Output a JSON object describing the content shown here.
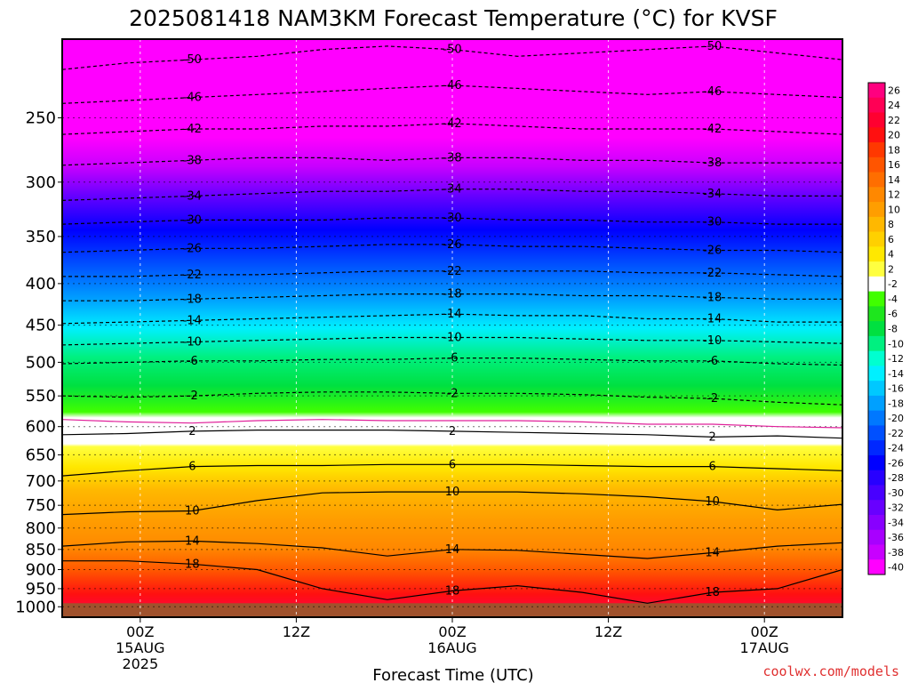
{
  "chart_data": {
    "type": "heatmap",
    "title": "2025081418 NAM3KM Forecast Temperature (°C) for KVSF",
    "xlabel": "Forecast Time (UTC)",
    "ylabel": "",
    "y_axis": {
      "scale": "pressure (log-like, decreasing upward)",
      "ticks": [
        250,
        300,
        350,
        400,
        450,
        500,
        550,
        600,
        650,
        700,
        750,
        800,
        850,
        900,
        950,
        1000
      ],
      "range": [
        1000,
        200
      ],
      "surface_pressure": 990
    },
    "x_axis": {
      "range_hours_from_init": [
        0,
        60
      ],
      "ticks": [
        {
          "line1": "00Z",
          "line2": "15AUG",
          "line3": "2025",
          "hour": 6
        },
        {
          "line1": "12Z",
          "line2": "",
          "line3": "",
          "hour": 18
        },
        {
          "line1": "00Z",
          "line2": "16AUG",
          "line3": "",
          "hour": 30
        },
        {
          "line1": "12Z",
          "line2": "",
          "line3": "",
          "hour": 42
        },
        {
          "line1": "00Z",
          "line2": "17AUG",
          "line3": "",
          "hour": 54
        }
      ]
    },
    "grid": true,
    "colorbar": {
      "position": "right",
      "labels": [
        "26",
        "24",
        "22",
        "20",
        "18",
        "16",
        "14",
        "12",
        "10",
        "8",
        "6",
        "4",
        "2",
        "-2",
        "-4",
        "-6",
        "-8",
        "-10",
        "-12",
        "-14",
        "-16",
        "-18",
        "-20",
        "-22",
        "-24",
        "-26",
        "-28",
        "-30",
        "-32",
        "-34",
        "-36",
        "-38",
        "-40"
      ],
      "colors": [
        "#ff007f",
        "#ff0055",
        "#ff0030",
        "#ff1010",
        "#ff3800",
        "#ff5500",
        "#ff6e00",
        "#ff8800",
        "#ff9e00",
        "#ffb800",
        "#ffd000",
        "#ffe800",
        "#ffff40",
        "#ffffff",
        "#40ff00",
        "#1ee61e",
        "#00e040",
        "#00f080",
        "#00ffd0",
        "#00f0ff",
        "#00c8ff",
        "#00a0ff",
        "#0078ff",
        "#0050ff",
        "#0028ff",
        "#0000ff",
        "#2800ff",
        "#4800ff",
        "#6800ff",
        "#8800ff",
        "#a800ff",
        "#c800ff",
        "#ff00ff"
      ]
    },
    "isotherms": [
      {
        "value": -50,
        "label": "-50",
        "pressure": [
          218,
          214,
          212,
          210,
          206,
          204,
          206,
          210,
          208,
          206,
          204,
          208,
          212
        ]
      },
      {
        "value": -46,
        "label": "-46",
        "pressure": [
          240,
          238,
          236,
          234,
          232,
          230,
          228,
          230,
          232,
          234,
          232,
          234,
          236
        ]
      },
      {
        "value": -42,
        "label": "-42",
        "pressure": [
          262,
          260,
          258,
          258,
          256,
          256,
          254,
          256,
          258,
          258,
          258,
          260,
          262
        ]
      },
      {
        "value": -38,
        "label": "-38",
        "pressure": [
          286,
          284,
          282,
          280,
          280,
          282,
          280,
          280,
          282,
          282,
          284,
          284,
          284
        ]
      },
      {
        "value": -34,
        "label": "-34",
        "pressure": [
          316,
          314,
          312,
          310,
          308,
          308,
          306,
          306,
          308,
          308,
          310,
          312,
          312
        ]
      },
      {
        "value": -30,
        "label": "-30",
        "pressure": [
          338,
          336,
          334,
          334,
          334,
          332,
          332,
          334,
          334,
          336,
          336,
          338,
          338
        ]
      },
      {
        "value": -26,
        "label": "-26",
        "pressure": [
          366,
          364,
          362,
          362,
          360,
          358,
          358,
          360,
          360,
          362,
          364,
          364,
          366
        ]
      },
      {
        "value": -22,
        "label": "-22",
        "pressure": [
          392,
          392,
          390,
          390,
          388,
          386,
          386,
          386,
          386,
          388,
          388,
          390,
          392
        ]
      },
      {
        "value": -18,
        "label": "-18",
        "pressure": [
          420,
          420,
          418,
          416,
          414,
          412,
          412,
          412,
          414,
          414,
          416,
          418,
          418
        ]
      },
      {
        "value": -14,
        "label": "-14",
        "pressure": [
          448,
          446,
          444,
          442,
          440,
          438,
          436,
          438,
          438,
          442,
          442,
          446,
          446
        ]
      },
      {
        "value": -10,
        "label": "-10",
        "pressure": [
          476,
          474,
          472,
          470,
          468,
          466,
          466,
          466,
          468,
          470,
          470,
          472,
          474
        ]
      },
      {
        "value": -6,
        "label": "-6",
        "pressure": [
          502,
          500,
          498,
          498,
          496,
          496,
          494,
          494,
          496,
          498,
          498,
          502,
          504
        ]
      },
      {
        "value": -2,
        "label": "-2",
        "pressure": [
          550,
          552,
          550,
          546,
          544,
          544,
          546,
          546,
          548,
          552,
          554,
          560,
          564
        ]
      },
      {
        "value": 0,
        "label": "",
        "pressure": [
          588,
          592,
          594,
          590,
          588,
          590,
          590,
          590,
          592,
          596,
          596,
          600,
          602
        ]
      },
      {
        "value": 2,
        "label": "2",
        "pressure": [
          614,
          612,
          608,
          606,
          606,
          606,
          608,
          610,
          612,
          614,
          618,
          616,
          620
        ]
      },
      {
        "value": 6,
        "label": "6",
        "pressure": [
          690,
          680,
          672,
          670,
          670,
          668,
          668,
          668,
          670,
          672,
          672,
          676,
          680
        ]
      },
      {
        "value": 10,
        "label": "10",
        "pressure": [
          770,
          764,
          762,
          740,
          724,
          722,
          722,
          722,
          726,
          732,
          742,
          760,
          748
        ]
      },
      {
        "value": 14,
        "label": "14",
        "pressure": [
          842,
          832,
          830,
          836,
          846,
          866,
          850,
          852,
          862,
          872,
          858,
          842,
          834
        ]
      },
      {
        "value": 18,
        "label": "18",
        "pressure": [
          878,
          878,
          886,
          900,
          950,
          980,
          956,
          942,
          960,
          990,
          960,
          950,
          900
        ]
      }
    ]
  },
  "credit": "coolwx.com/models"
}
